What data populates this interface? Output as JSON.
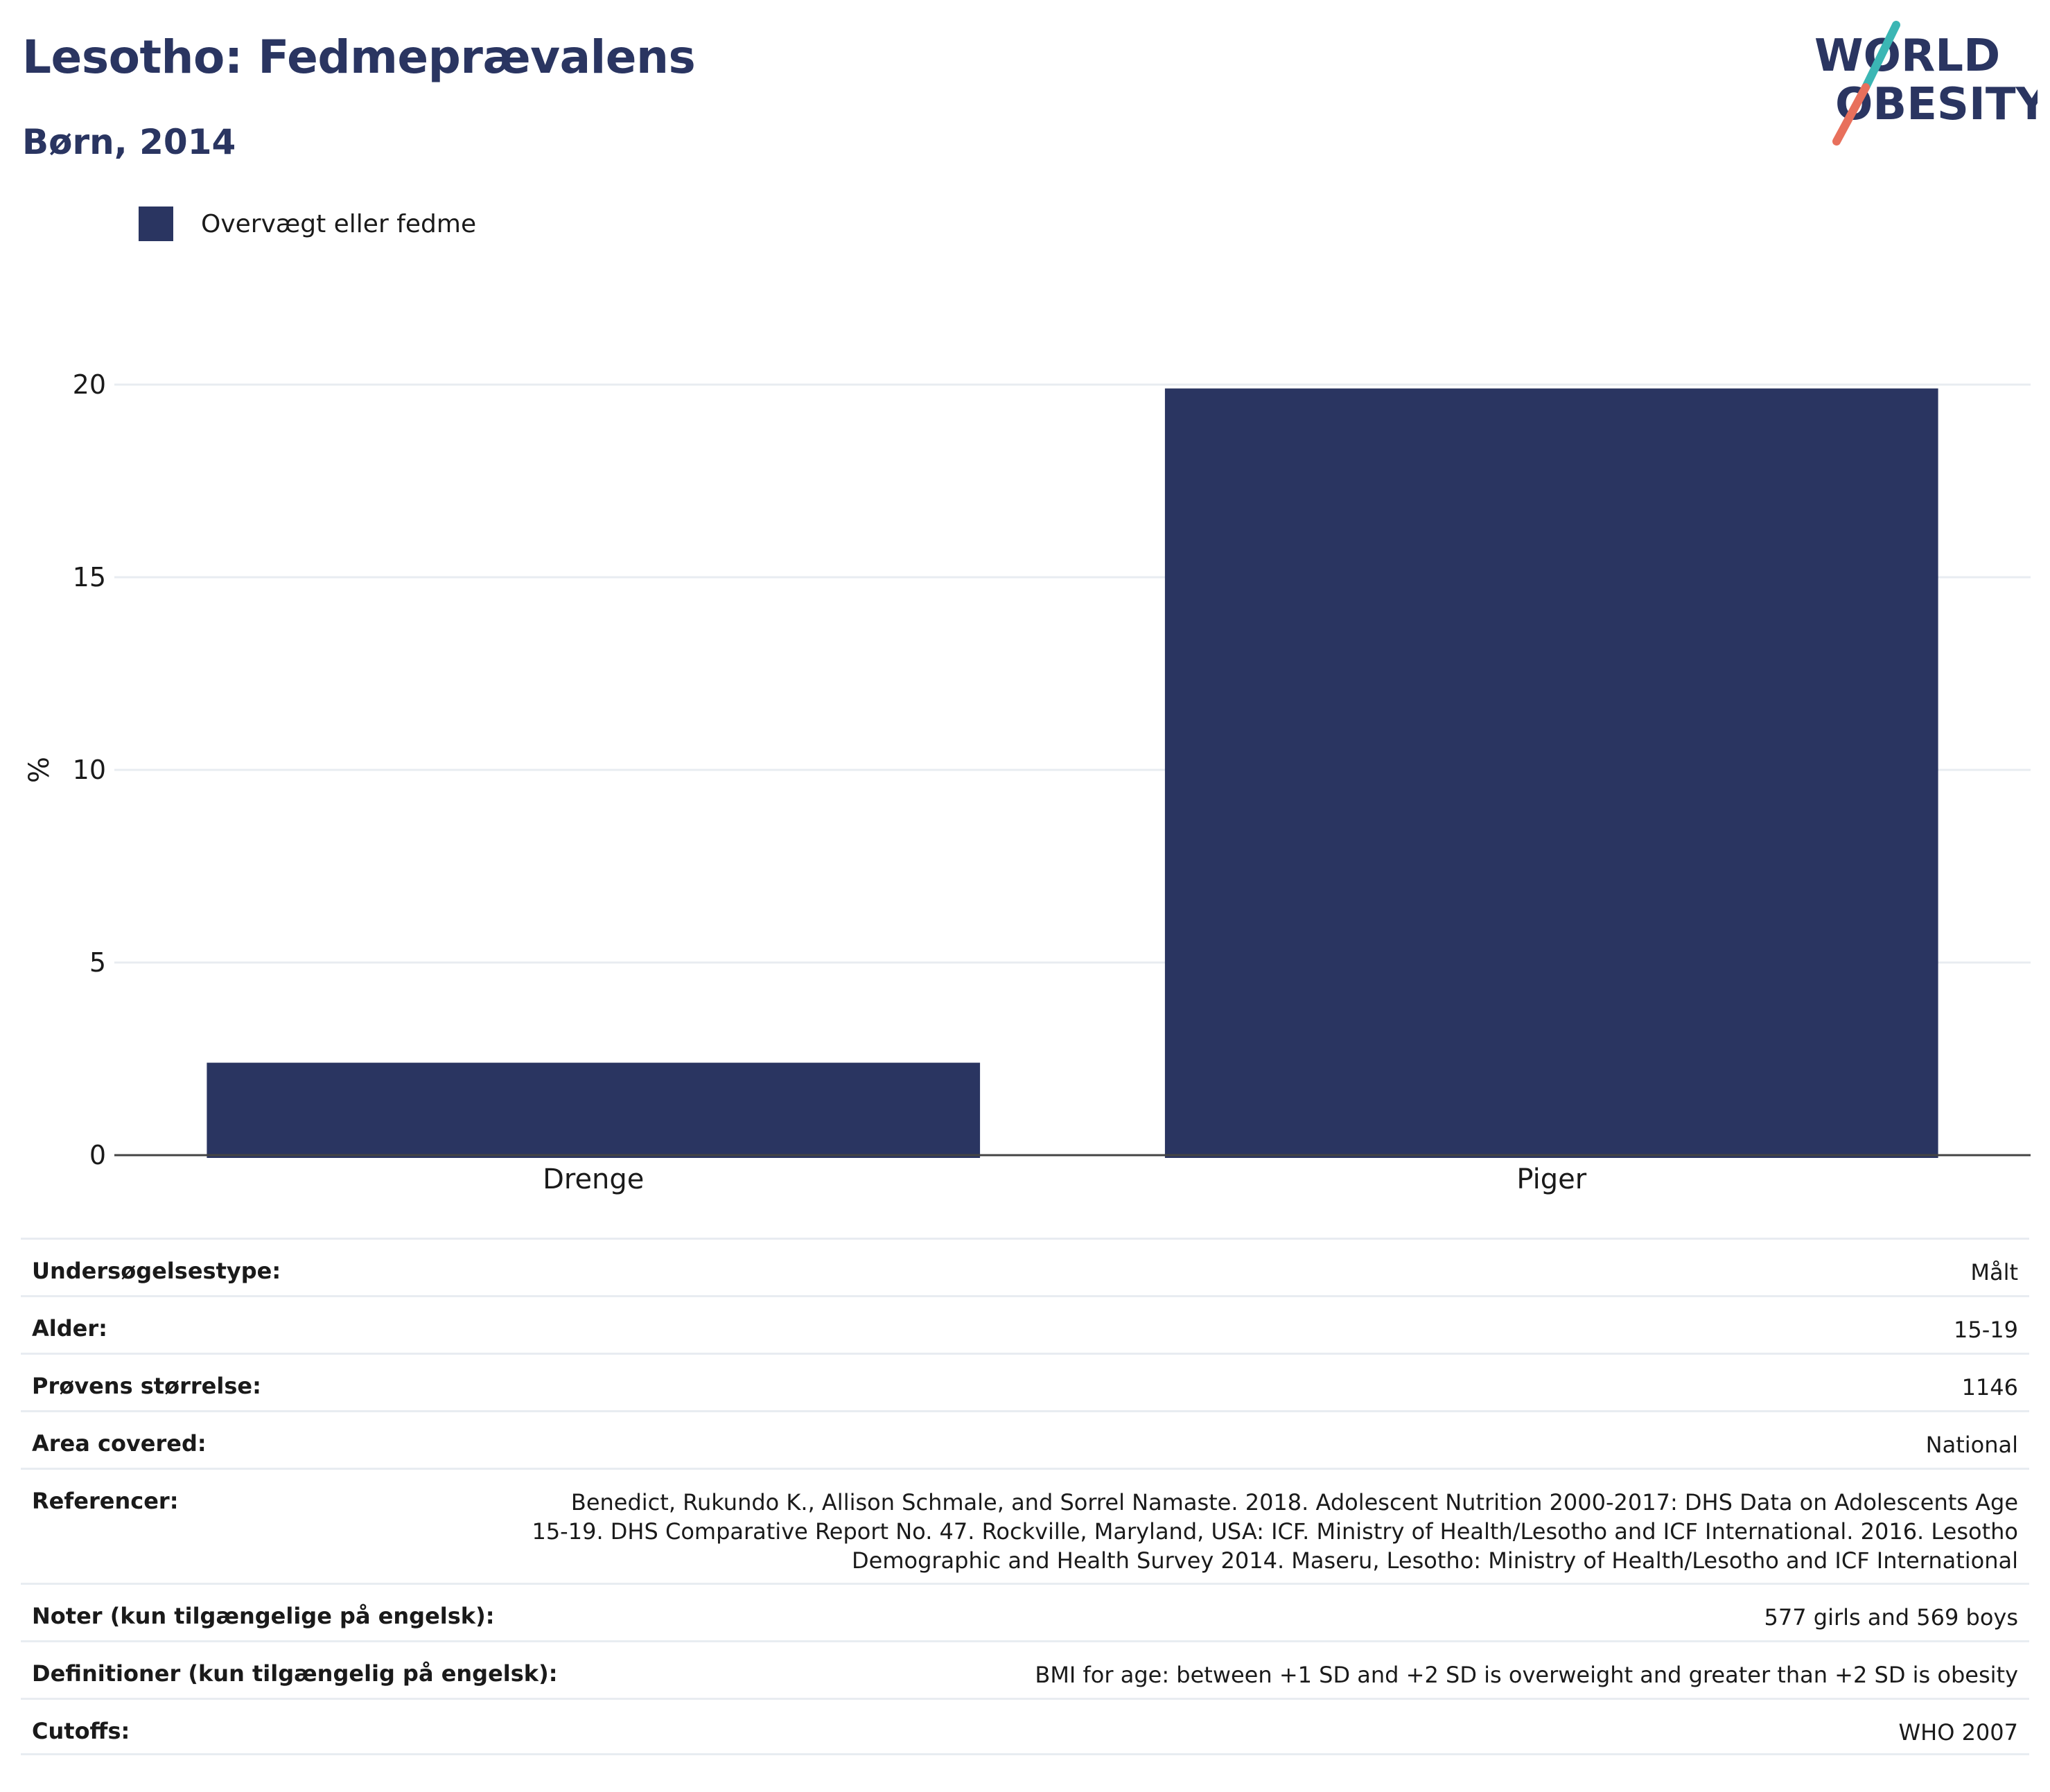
{
  "title": "Lesotho: Fedmeprævalens",
  "subtitle": "Børn, 2014",
  "logo": {
    "line1": "WORLD",
    "line2": "OBESITY",
    "accent_teal": "#3bb6b4",
    "accent_coral": "#e8705c"
  },
  "colors": {
    "bar": "#2a3561",
    "grid": "#e8ecf1",
    "axis": "#444444"
  },
  "legend": {
    "label": "Overvægt eller fedme",
    "placement": "top-left"
  },
  "chart_data": {
    "type": "bar",
    "title": "",
    "xlabel": "",
    "ylabel": "%",
    "categories": [
      "Drenge",
      "Piger"
    ],
    "series": [
      {
        "name": "Overvægt eller fedme",
        "values": [
          2.4,
          19.9
        ]
      }
    ],
    "ylim": [
      0,
      20
    ],
    "yticks": [
      0,
      5,
      10,
      15,
      20
    ],
    "grid": true
  },
  "metadata": [
    {
      "key": "Undersøgelsestype:",
      "value": "Målt"
    },
    {
      "key": "Alder:",
      "value": "15-19"
    },
    {
      "key": "Prøvens størrelse:",
      "value": "1146"
    },
    {
      "key": "Area covered:",
      "value": "National"
    },
    {
      "key": "Referencer:",
      "value": "Benedict, Rukundo K., Allison Schmale, and Sorrel Namaste. 2018. Adolescent Nutrition 2000-2017: DHS Data on Adolescents Age 15-19. DHS Comparative Report No. 47. Rockville, Maryland, USA: ICF. Ministry of Health/Lesotho and ICF International. 2016. Lesotho Demographic and Health Survey 2014. Maseru, Lesotho: Ministry of Health/Lesotho and ICF International"
    },
    {
      "key": "Noter (kun tilgængelige på engelsk):",
      "value": "577 girls and 569 boys"
    },
    {
      "key": "Definitioner (kun tilgængelig på engelsk):",
      "value": "BMI for age: between +1 SD and +2 SD is overweight and greater than +2 SD is obesity"
    },
    {
      "key": "Cutoffs:",
      "value": "WHO 2007"
    }
  ]
}
